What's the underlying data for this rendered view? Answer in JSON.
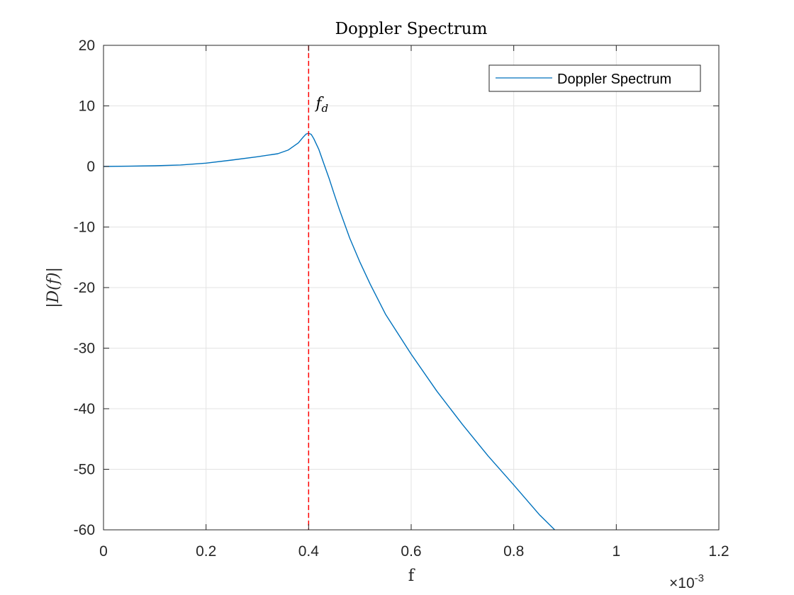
{
  "chart_data": {
    "type": "line",
    "title": "Doppler Spectrum",
    "xlabel": "f",
    "ylabel": "|D(f)|",
    "x_multiplier": "×10-3",
    "xlim": [
      0,
      0.0012
    ],
    "ylim": [
      -60,
      20
    ],
    "x_ticks": [
      0,
      0.0002,
      0.0004,
      0.0006,
      0.0008,
      0.001,
      0.0012
    ],
    "x_tick_labels": [
      "0",
      "0.2",
      "0.4",
      "0.6",
      "0.8",
      "1",
      "1.2"
    ],
    "y_ticks": [
      20,
      10,
      0,
      -10,
      -20,
      -30,
      -40,
      -50,
      -60
    ],
    "y_tick_labels": [
      "20",
      "10",
      "0",
      "-10",
      "-20",
      "-30",
      "-40",
      "-50",
      "-60"
    ],
    "grid": true,
    "legend_position": "top-right",
    "series": [
      {
        "name": "Doppler Spectrum",
        "color": "#0072bd",
        "x": [
          0,
          5e-05,
          0.0001,
          0.00015,
          0.0002,
          0.00025,
          0.0003,
          0.00034,
          0.00036,
          0.00038,
          0.00039,
          0.000395,
          0.0004,
          0.000405,
          0.00041,
          0.00042,
          0.00043,
          0.00044,
          0.00045,
          0.00046,
          0.00048,
          0.0005,
          0.00052,
          0.00055,
          0.0006,
          0.00065,
          0.0007,
          0.00075,
          0.0008,
          0.00085,
          0.00088
        ],
        "y": [
          0,
          0.05,
          0.12,
          0.25,
          0.55,
          1.05,
          1.6,
          2.1,
          2.7,
          3.9,
          4.9,
          5.35,
          5.5,
          5.3,
          4.6,
          2.8,
          0.4,
          -2.0,
          -4.6,
          -7.1,
          -11.8,
          -15.8,
          -19.4,
          -24.4,
          -31.0,
          -37.1,
          -42.6,
          -47.8,
          -52.6,
          -57.5,
          -60
        ]
      }
    ],
    "reference_line": {
      "x": 0.0004,
      "color": "#ff0000",
      "style": "dashed",
      "label": "fd"
    },
    "annotation": {
      "main": "f",
      "subscript": "d"
    }
  }
}
